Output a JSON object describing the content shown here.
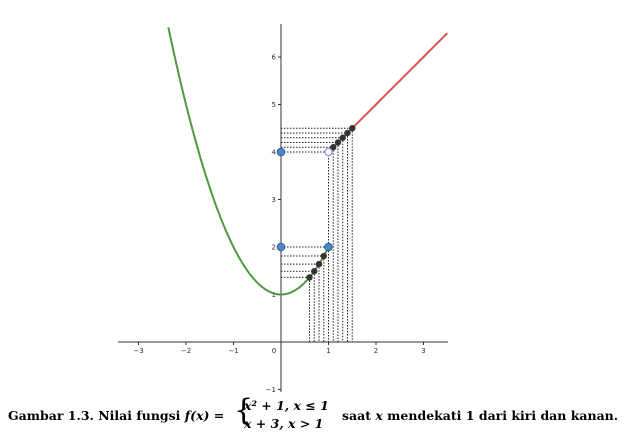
{
  "chart_data": {
    "type": "line",
    "xlim": [
      -3.5,
      3.5
    ],
    "ylim": [
      -1.1,
      6.7
    ],
    "x_ticks": [
      "-3",
      "-2",
      "-1",
      "0",
      "1",
      "2",
      "3"
    ],
    "y_ticks": [
      "-1",
      "1",
      "2",
      "3",
      "4",
      "5",
      "6"
    ],
    "grid": false,
    "series": [
      {
        "formula": "x^2 + 1",
        "domain": [
          -2.4,
          1
        ],
        "color": "#4e9a3f"
      },
      {
        "formula": "x + 3",
        "domain": [
          1,
          3.5
        ],
        "color": "#d9534f"
      }
    ],
    "left_points": [
      {
        "x": 0.6,
        "y": 1.36
      },
      {
        "x": 0.7,
        "y": 1.49
      },
      {
        "x": 0.8,
        "y": 1.64
      },
      {
        "x": 0.9,
        "y": 1.81
      }
    ],
    "right_points": [
      {
        "x": 1.1,
        "y": 4.1
      },
      {
        "x": 1.2,
        "y": 4.2
      },
      {
        "x": 1.3,
        "y": 4.3
      },
      {
        "x": 1.4,
        "y": 4.4
      },
      {
        "x": 1.5,
        "y": 4.5
      }
    ],
    "y_axis_markers": [
      {
        "x": 0,
        "y": 2
      },
      {
        "x": 0,
        "y": 4
      }
    ],
    "filled_point": {
      "x": 1,
      "y": 2
    },
    "open_point": {
      "x": 1,
      "y": 4
    },
    "colors": {
      "axis": "#333333",
      "marker_fill": "#4f86c6",
      "marker_stroke": "#2d5d99",
      "sequence_point": "#333333",
      "open_point_fill": "#ffffff",
      "open_point_stroke": "#9b8fd9",
      "guide": "#222222"
    }
  },
  "caption": {
    "prefix": "Gambar 1.3. Nilai fungsi ",
    "fx": "f(x) =",
    "brace": "{",
    "case1": "x² + 1,  x ≤ 1",
    "case2": "x + 3,  x > 1",
    "suffix_1": " saat ",
    "suffix_var": "x",
    "suffix_2": " mendekati 1 dari kiri dan kanan."
  }
}
